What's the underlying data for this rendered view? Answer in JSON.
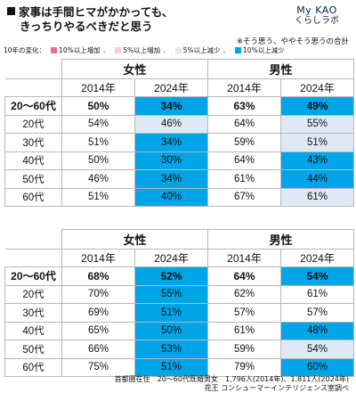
{
  "header": {
    "title_line1": "家事は手間ヒマがかかっても、",
    "title_line2": "きっちりやるべきだと思う",
    "logo_line1": "My KAO",
    "logo_line2": "くらしラボ",
    "note": "※そう思う、ややそう思うの合計"
  },
  "legend": {
    "label": "10年の変化：",
    "items": [
      {
        "label": "10%以上増加",
        "color": "#f0679f"
      },
      {
        "label": "5%以上増加",
        "color": "#f9c9dc"
      },
      {
        "label": "5%以上減少",
        "color": "#dfe9f6"
      },
      {
        "label": "10%以上減少",
        "color": "#00a5e8"
      }
    ],
    "separator": "、"
  },
  "table1": {
    "sex_labels": [
      "女性",
      "男性"
    ],
    "year_labels": [
      "2014年",
      "2024年",
      "2014年",
      "2024年"
    ],
    "rows": [
      {
        "age": "20～60代",
        "cells": [
          "50%",
          "34%",
          "63%",
          "49%"
        ],
        "shade": [
          "",
          "dark",
          "",
          "dark"
        ]
      },
      {
        "age": "20代",
        "cells": [
          "54%",
          "46%",
          "64%",
          "55%"
        ],
        "shade": [
          "",
          "light",
          "",
          "light"
        ]
      },
      {
        "age": "30代",
        "cells": [
          "51%",
          "34%",
          "59%",
          "51%"
        ],
        "shade": [
          "",
          "dark",
          "",
          "light"
        ]
      },
      {
        "age": "40代",
        "cells": [
          "50%",
          "30%",
          "64%",
          "43%"
        ],
        "shade": [
          "",
          "dark",
          "",
          "dark"
        ]
      },
      {
        "age": "50代",
        "cells": [
          "46%",
          "34%",
          "61%",
          "44%"
        ],
        "shade": [
          "",
          "dark",
          "",
          "dark"
        ]
      },
      {
        "age": "60代",
        "cells": [
          "51%",
          "40%",
          "67%",
          "61%"
        ],
        "shade": [
          "",
          "dark",
          "",
          "light"
        ]
      }
    ]
  },
  "table2": {
    "sex_labels": [
      "女性",
      "男性"
    ],
    "year_labels": [
      "2014年",
      "2024年",
      "2014年",
      "2024年"
    ],
    "rows": [
      {
        "age": "20～60代",
        "cells": [
          "68%",
          "52%",
          "64%",
          "54%"
        ],
        "shade": [
          "",
          "dark",
          "",
          "dark"
        ]
      },
      {
        "age": "20代",
        "cells": [
          "70%",
          "55%",
          "62%",
          "61%"
        ],
        "shade": [
          "",
          "dark",
          "",
          ""
        ]
      },
      {
        "age": "30代",
        "cells": [
          "69%",
          "51%",
          "57%",
          "57%"
        ],
        "shade": [
          "",
          "dark",
          "",
          ""
        ]
      },
      {
        "age": "40代",
        "cells": [
          "65%",
          "50%",
          "61%",
          "48%"
        ],
        "shade": [
          "",
          "dark",
          "",
          "dark"
        ]
      },
      {
        "age": "50代",
        "cells": [
          "66%",
          "53%",
          "59%",
          "54%"
        ],
        "shade": [
          "",
          "dark",
          "",
          "light"
        ]
      },
      {
        "age": "60代",
        "cells": [
          "75%",
          "51%",
          "79%",
          "60%"
        ],
        "shade": [
          "",
          "dark",
          "",
          "dark"
        ]
      }
    ]
  },
  "source": {
    "line1": "首都圏在住　20～60代既婚男女　1,796人(2014年)、1,811人(2024年)",
    "line2": "花王 コンシューマーインテリジェンス室調べ"
  }
}
